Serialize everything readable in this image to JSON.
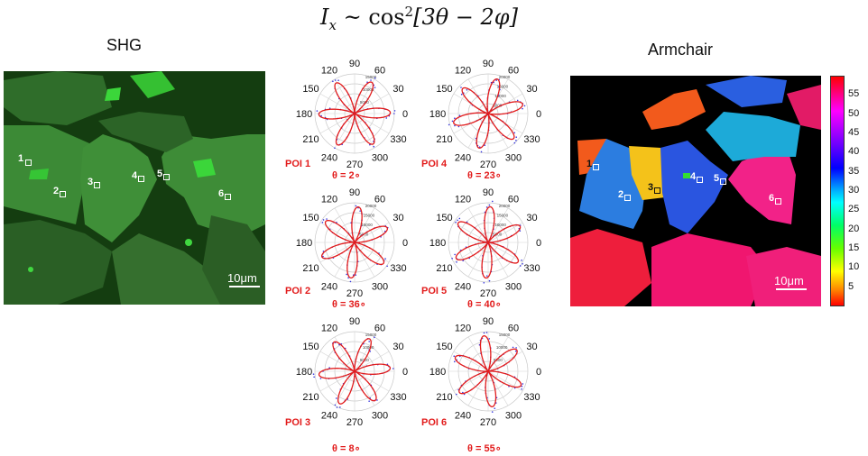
{
  "equation": {
    "lhs": "I",
    "sub": "x",
    "rel": " ~ cos",
    "sup": "2",
    "arg": "[3θ − 2φ]"
  },
  "shg": {
    "title": "SHG",
    "scale": "10μm",
    "colors": {
      "bg": "#123a0f",
      "flake": "#3f8f3a",
      "bright": "#33d633"
    },
    "points": [
      {
        "label": "1"
      },
      {
        "label": "2"
      },
      {
        "label": "3"
      },
      {
        "label": "4"
      },
      {
        "label": "5"
      },
      {
        "label": "6"
      }
    ]
  },
  "armchair": {
    "title": "Armchair",
    "scale": "10μm",
    "colorbar": {
      "ticks": [
        "55",
        "50",
        "45",
        "40",
        "35",
        "30",
        "25",
        "20",
        "15",
        "10",
        "5"
      ],
      "min": 0,
      "max": 60
    },
    "points": [
      {
        "label": "1"
      },
      {
        "label": "2"
      },
      {
        "label": "3"
      },
      {
        "label": "4"
      },
      {
        "label": "5"
      },
      {
        "label": "6"
      }
    ]
  },
  "chart_data": [
    {
      "type": "polar",
      "poi": "POI 1",
      "theta_label": "θ = 2∘",
      "theta_deg": 2,
      "angle_labels": [
        "90",
        "60",
        "30",
        "0",
        "330",
        "300",
        "270",
        "240",
        "210",
        "180",
        "150",
        "120"
      ],
      "radial_ticks": [
        "15000",
        "10000",
        "5000"
      ]
    },
    {
      "type": "polar",
      "poi": "POI 4",
      "theta_label": "θ = 23∘",
      "theta_deg": 23,
      "angle_labels": [
        "90",
        "60",
        "30",
        "0",
        "330",
        "300",
        "270",
        "240",
        "210",
        "180",
        "150",
        "120"
      ],
      "radial_ticks": [
        "20000",
        "15000",
        "10000",
        "5000"
      ]
    },
    {
      "type": "polar",
      "poi": "POI 2",
      "theta_label": "θ = 36∘",
      "theta_deg": 36,
      "angle_labels": [
        "90",
        "60",
        "30",
        "0",
        "330",
        "300",
        "270",
        "240",
        "210",
        "180",
        "150",
        "120"
      ],
      "radial_ticks": [
        "20000",
        "15000",
        "10000",
        "5000"
      ]
    },
    {
      "type": "polar",
      "poi": "POI 5",
      "theta_label": "θ = 40∘",
      "theta_deg": 40,
      "angle_labels": [
        "90",
        "60",
        "30",
        "0",
        "330",
        "300",
        "270",
        "240",
        "210",
        "180",
        "150",
        "120"
      ],
      "radial_ticks": [
        "20000",
        "15000",
        "10000",
        "5000"
      ]
    },
    {
      "type": "polar",
      "poi": "POI 3",
      "theta_label": "θ = 8∘",
      "theta_deg": 8,
      "angle_labels": [
        "90",
        "60",
        "30",
        "0",
        "330",
        "300",
        "270",
        "240",
        "210",
        "180",
        "150",
        "120"
      ],
      "radial_ticks": [
        "15000",
        "10000",
        "5000"
      ]
    },
    {
      "type": "polar",
      "poi": "POI 6",
      "theta_label": "θ = 55∘",
      "theta_deg": 55,
      "angle_labels": [
        "90",
        "60",
        "30",
        "0",
        "330",
        "300",
        "270",
        "240",
        "210",
        "180",
        "150",
        "120"
      ],
      "radial_ticks": [
        "15000",
        "10000",
        "5000"
      ]
    }
  ],
  "colors": {
    "fit": "#e21b1b",
    "data": "#3333dd",
    "label": "#e21b1b"
  }
}
